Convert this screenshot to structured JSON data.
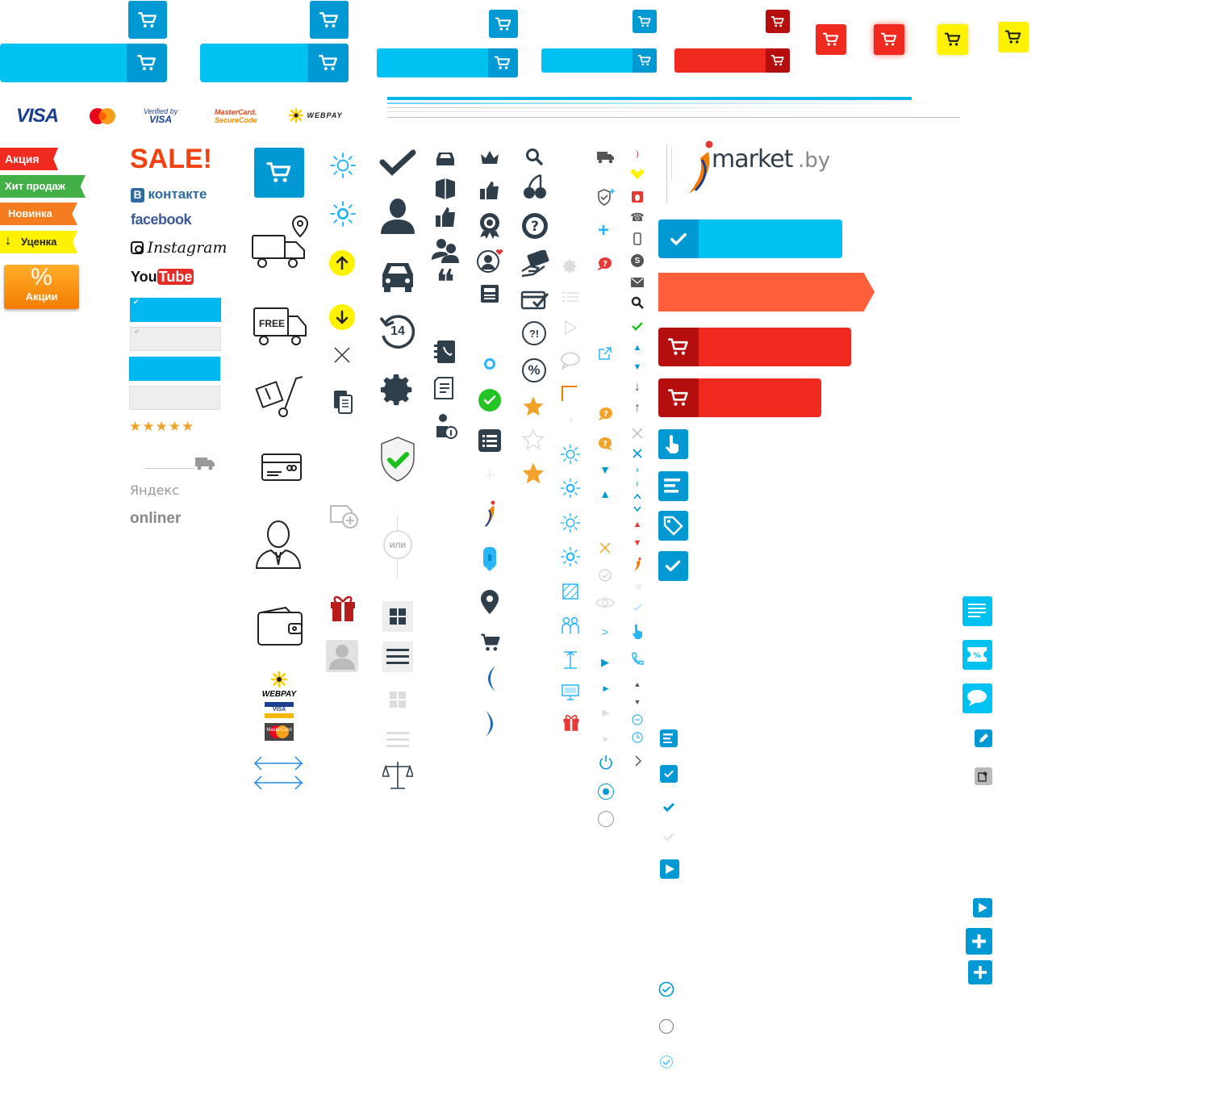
{
  "colors": {
    "blue": "#00c2f2",
    "blue_dark": "#0199d3",
    "red": "#f12a1f",
    "red_dark": "#b50e0e",
    "orange": "#ff5e3a",
    "yellow": "#fff200",
    "green": "#22c322",
    "dark": "#2f3e4b",
    "gray": "#c8c8c8"
  },
  "payments": {
    "visa": "VISA",
    "verified_line1": "Verified by",
    "verified_line2": "VISA",
    "mc_securecode_line1": "MasterCard.",
    "mc_securecode_line2": "SecureCode",
    "webpay": "WEBPAY",
    "mastercard_small": "MasterCard"
  },
  "labels": {
    "akciya": "Акция",
    "hit": "Хит продаж",
    "novinka": "Новинка",
    "ucenka": "Уценка",
    "percent": "%",
    "akcii": "Акции"
  },
  "social": {
    "sale": "SALE!",
    "vk": "контакте",
    "vk_b": "В",
    "facebook": "facebook",
    "instagram": "Instagram",
    "you": "You",
    "tube": "Tube",
    "stars": "★★★★★",
    "yandex": "Яндекс",
    "onliner": "onliner"
  },
  "misc": {
    "free": "FREE",
    "days14": "14",
    "or": "или",
    "brand": "market",
    "brand_tld": ".by",
    "webpay_card": "WEBPAY",
    "visa_card": "VISA",
    "mc_card": "MasterCard",
    "quote": "❝",
    "qmark_excl": "?!",
    "percent_circle": "%"
  },
  "icons": [
    "cart-icon",
    "truck-icon",
    "search-icon",
    "check-icon",
    "star-icon",
    "gear-icon",
    "shield-icon",
    "user-icon",
    "car-icon",
    "crown-icon",
    "thumbs-up-icon",
    "gift-icon",
    "sun-icon",
    "arrow-up-icon",
    "arrow-down-icon",
    "close-icon",
    "copy-icon",
    "grid-icon",
    "menu-icon",
    "scales-icon",
    "location-pin-icon",
    "play-icon",
    "plus-icon",
    "radio-icon"
  ]
}
